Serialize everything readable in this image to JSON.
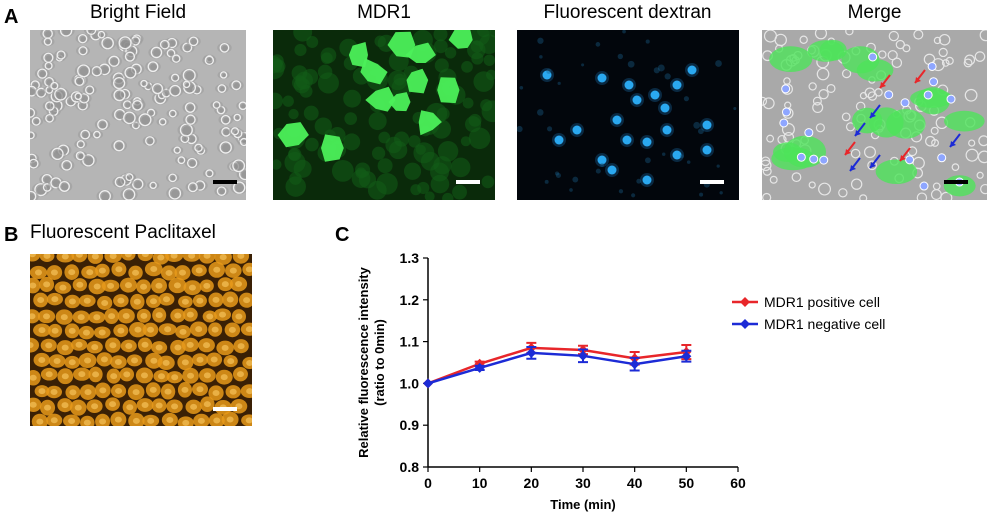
{
  "panels": {
    "a": {
      "letter": "A",
      "titles": [
        "Bright Field",
        "MDR1",
        "Fluorescent dextran",
        "Merge"
      ]
    },
    "b": {
      "letter": "B",
      "title": "Fluorescent Paclitaxel"
    },
    "c": {
      "letter": "C"
    }
  },
  "colors": {
    "positive": "#e8262a",
    "negative": "#1c2bd6",
    "mdr1_green": "#3fe04a",
    "dextran_blue": "#2aa8f0",
    "paclitaxel_orange": "#e89a1a"
  },
  "chart_data": {
    "type": "line",
    "xlabel": "Time (min)",
    "ylabel": "Relative fluorescence intensity\n(ratio to 0min)",
    "xlim": [
      0,
      60
    ],
    "ylim": [
      0.8,
      1.3
    ],
    "xticks": [
      0,
      10,
      20,
      30,
      40,
      50,
      60
    ],
    "yticks": [
      0.8,
      0.9,
      1.0,
      1.1,
      1.2,
      1.3
    ],
    "x": [
      0,
      10,
      20,
      30,
      40,
      50
    ],
    "series": [
      {
        "name": "MDR1 positive cell",
        "color": "#e8262a",
        "marker": "diamond",
        "values": [
          1.0,
          1.047,
          1.085,
          1.08,
          1.06,
          1.075
        ],
        "errors": [
          0,
          0.005,
          0.012,
          0.01,
          0.015,
          0.017
        ]
      },
      {
        "name": "MDR1 negative cell",
        "color": "#1c2bd6",
        "marker": "diamond",
        "values": [
          1.0,
          1.037,
          1.073,
          1.066,
          1.046,
          1.065
        ],
        "errors": [
          0,
          0.005,
          0.014,
          0.015,
          0.015,
          0.013
        ]
      }
    ],
    "legend_position": "top-right",
    "grid": false
  }
}
